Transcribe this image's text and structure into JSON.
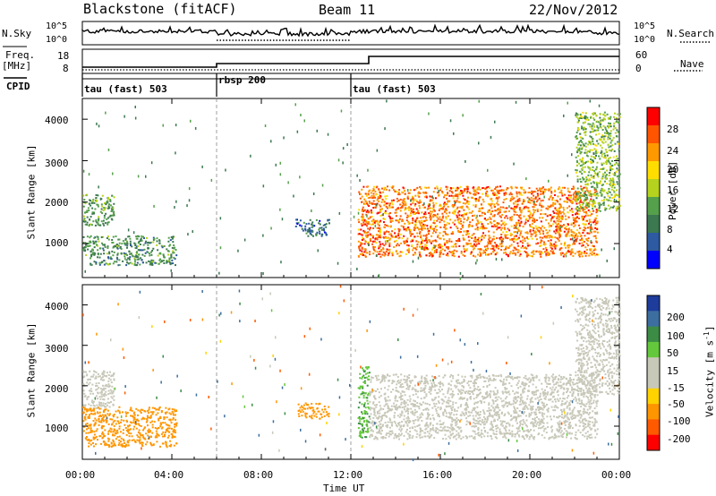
{
  "header": {
    "title": "Blackstone (fitACF)",
    "beam": "Beam 11",
    "date": "22/Nov/2012"
  },
  "top_panels": {
    "nsky": {
      "label": "N.Sky",
      "ticks": [
        "10^5",
        "10^0"
      ]
    },
    "nsearch": {
      "label": "N.Search",
      "ticks": [
        "10^5",
        "10^0"
      ]
    },
    "freq": {
      "label_line1": "Freq.",
      "label_line2": "[MHz]",
      "ticks": [
        "18",
        "8"
      ]
    },
    "nave": {
      "label": "Nave",
      "ticks": [
        "60",
        "0"
      ]
    },
    "cpid": {
      "label": "CPID"
    }
  },
  "modes": [
    {
      "label": "tau (fast) 503",
      "start_hour": 0
    },
    {
      "label": "rbsp 200",
      "start_hour": 6
    },
    {
      "label": "tau (fast) 503",
      "start_hour": 12
    }
  ],
  "x_axis": {
    "label": "Time UT",
    "ticks": [
      "00:00",
      "04:00",
      "08:00",
      "12:00",
      "16:00",
      "20:00",
      "00:00"
    ]
  },
  "y_axis": {
    "label": "Slant Range [km]",
    "ticks": [
      "4000",
      "3000",
      "2000",
      "1000"
    ]
  },
  "power_colorbar": {
    "label": "Power [dB]",
    "ticks": [
      "28",
      "24",
      "20",
      "16",
      "12",
      "8",
      "4"
    ],
    "colors": [
      "#ff0000",
      "#ff5500",
      "#ff9900",
      "#ffdd00",
      "#b4d21e",
      "#55a04b",
      "#3c7850",
      "#2d5aa0",
      "#0000ff"
    ]
  },
  "velocity_colorbar": {
    "label": "Velocity [m s",
    "label_sup": "-1",
    "label_close": "]",
    "ticks": [
      "200",
      "100",
      "50",
      "15",
      "-15",
      "-50",
      "-100",
      "-200"
    ],
    "colors": [
      "#1e3c9b",
      "#3c6ea0",
      "#3c8c46",
      "#64c83c",
      "#c8c8b9",
      "#c8c8b9",
      "#ffd200",
      "#ff9600",
      "#ff5a00",
      "#ff0000"
    ]
  },
  "chart_data": [
    {
      "type": "heatmap",
      "title": "Power",
      "xlabel": "Time UT",
      "ylabel": "Slant Range [km]",
      "xlim": [
        0,
        24
      ],
      "ylim": [
        180,
        4500
      ],
      "colorbar_label": "Power [dB]",
      "colorbar_range": [
        0,
        32
      ],
      "regions": [
        {
          "t": [
            0.0,
            1.4
          ],
          "r": [
            1450,
            2200
          ],
          "value": 11
        },
        {
          "t": [
            0.0,
            4.2
          ],
          "r": [
            500,
            1200
          ],
          "value": 10
        },
        {
          "t": [
            9.5,
            11.0
          ],
          "r": [
            1200,
            1600
          ],
          "value": 6
        },
        {
          "t": [
            12.3,
            23.0
          ],
          "r": [
            700,
            2400
          ],
          "value": 26
        },
        {
          "t": [
            22.0,
            24.0
          ],
          "r": [
            1800,
            4200
          ],
          "value": 14
        }
      ]
    },
    {
      "type": "heatmap",
      "title": "Velocity",
      "xlabel": "Time UT",
      "ylabel": "Slant Range [km]",
      "xlim": [
        0,
        24
      ],
      "ylim": [
        180,
        4500
      ],
      "colorbar_label": "Velocity [m s-1]",
      "colorbar_range": [
        -250,
        250
      ],
      "regions": [
        {
          "t": [
            0.0,
            1.4
          ],
          "r": [
            1450,
            2400
          ],
          "value": 0
        },
        {
          "t": [
            0.0,
            4.2
          ],
          "r": [
            500,
            1500
          ],
          "value": -40
        },
        {
          "t": [
            9.5,
            11.0
          ],
          "r": [
            1200,
            1600
          ],
          "value": -40
        },
        {
          "t": [
            12.3,
            12.8
          ],
          "r": [
            700,
            2500
          ],
          "value": 30
        },
        {
          "t": [
            12.8,
            23.0
          ],
          "r": [
            700,
            2300
          ],
          "value": 0
        },
        {
          "t": [
            22.0,
            24.0
          ],
          "r": [
            1800,
            4200
          ],
          "value": 0
        }
      ]
    }
  ]
}
